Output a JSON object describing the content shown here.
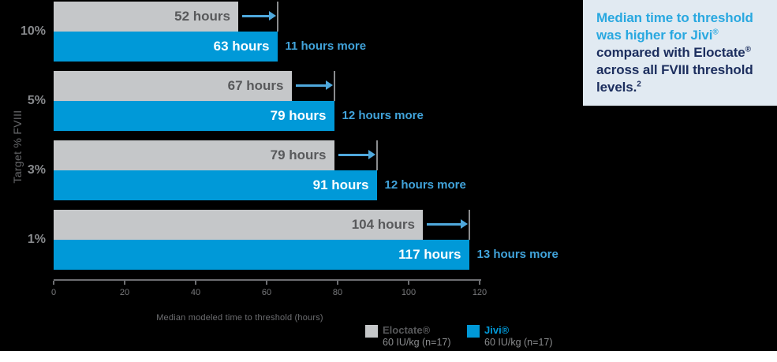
{
  "chart_data": {
    "type": "bar",
    "orientation": "horizontal",
    "xlabel": "Median modeled time to threshold (hours)",
    "ylabel": "Target % FVIII",
    "xlim": [
      0,
      120
    ],
    "x_ticks": [
      0,
      20,
      40,
      60,
      80,
      100,
      120
    ],
    "categories": [
      "10%",
      "5%",
      "3%",
      "1%"
    ],
    "series": [
      {
        "name": "Eloctate®",
        "dose": "60 IU/kg (n=17)",
        "color": "#C5C7C9",
        "values": [
          52,
          67,
          79,
          104
        ],
        "labels": [
          "52 hours",
          "67 hours",
          "79 hours",
          "104 hours"
        ]
      },
      {
        "name": "Jivi®",
        "dose": "60 IU/kg (n=17)",
        "color": "#0099D8",
        "values": [
          63,
          79,
          91,
          117
        ],
        "labels": [
          "63 hours",
          "79 hours",
          "91 hours",
          "117 hours"
        ]
      }
    ],
    "difference_labels": [
      "11 hours more",
      "12 hours more",
      "12 hours more",
      "13 hours more"
    ],
    "legend_position": "bottom",
    "grid": false
  },
  "colors": {
    "background": "#000000",
    "jivi_blue": "#0099D8",
    "eloctate_gray": "#C5C7C9",
    "arrow_blue": "#4FA8DC",
    "diff_label_blue": "#41A3DA",
    "bar_label_dark": "#58595B",
    "bar_label_white": "#FFFFFF",
    "axis_gray": "#6D6E71",
    "threshold_line_gray": "#8A8C8E",
    "legend_eloctate_label": "#58595B",
    "callout_bg": "#E1EAF2",
    "callout_highlight": "#29A8E0",
    "callout_navy": "#1C2E5E"
  },
  "callout": {
    "highlight": "Median time to threshold was higher for Jivi",
    "highlight_sup": "®",
    "body_a": "compared with Eloctate",
    "body_a_sup": "®",
    "body_b": "across all FVIII threshold levels.",
    "body_b_sup": "2"
  }
}
